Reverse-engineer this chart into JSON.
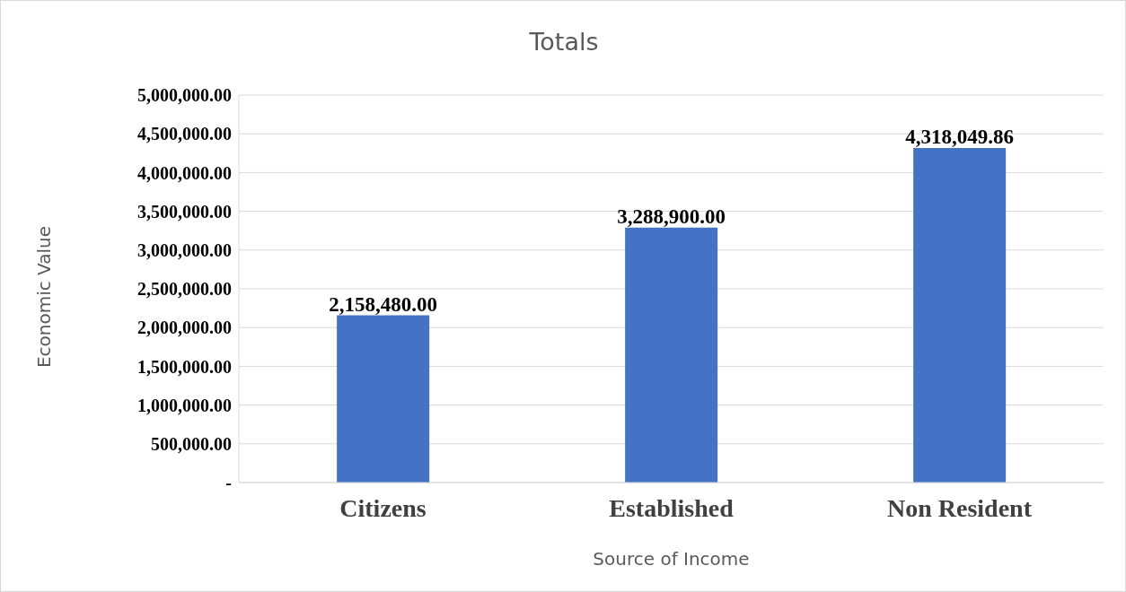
{
  "chart_data": {
    "type": "bar",
    "title": "Totals",
    "xlabel": "Source of Income",
    "ylabel": "Economic Value",
    "categories": [
      "Citizens",
      "Established",
      "Non Resident"
    ],
    "values": [
      2158480.0,
      3288900.0,
      4318049.86
    ],
    "color": "#4472c4",
    "ylim": [
      0,
      5000000
    ],
    "yticks": [
      {
        "value": 0,
        "label": "-"
      },
      {
        "value": 500000,
        "label": "500,000.00"
      },
      {
        "value": 1000000,
        "label": "1,000,000.00"
      },
      {
        "value": 1500000,
        "label": "1,500,000.00"
      },
      {
        "value": 2000000,
        "label": "2,000,000.00"
      },
      {
        "value": 2500000,
        "label": "2,500,000.00"
      },
      {
        "value": 3000000,
        "label": "3,000,000.00"
      },
      {
        "value": 3500000,
        "label": "3,500,000.00"
      },
      {
        "value": 4000000,
        "label": "4,000,000.00"
      },
      {
        "value": 4500000,
        "label": "4,500,000.00"
      },
      {
        "value": 5000000,
        "label": "5,000,000.00"
      }
    ],
    "value_labels": [
      "2,158,480.00",
      "3,288,900.00",
      "4,318,049.86"
    ],
    "grid": "y"
  }
}
